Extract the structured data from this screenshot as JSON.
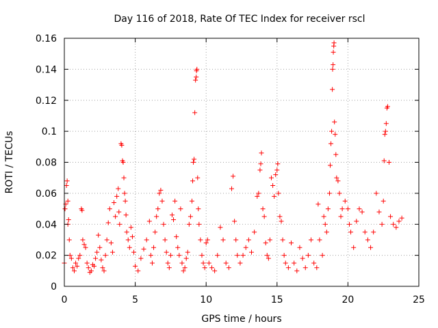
{
  "chart_data": {
    "type": "scatter",
    "title": "Day 116 of 2018, Rate Of TEC Index for receiver rscl",
    "xlabel": "GPS time / hours",
    "ylabel": "ROTI / TECUs",
    "xlim": [
      0,
      25
    ],
    "ylim": [
      0,
      0.16
    ],
    "xticks": [
      0,
      5,
      10,
      15,
      20,
      25
    ],
    "xtick_labels": [
      "0",
      "5",
      "10",
      "15",
      "20",
      "25"
    ],
    "yticks": [
      0,
      0.02,
      0.04,
      0.06,
      0.08,
      0.1,
      0.12,
      0.14,
      0.16
    ],
    "ytick_labels": [
      "0",
      "0.02",
      "0.04",
      "0.06",
      "0.08",
      "0.1",
      "0.12",
      "0.14",
      "0.16"
    ],
    "grid": true,
    "marker": "+",
    "color": "#ff0000",
    "series": [
      {
        "name": "ROTI",
        "points": [
          [
            0.0,
            0.015
          ],
          [
            0.05,
            0.05
          ],
          [
            0.1,
            0.053
          ],
          [
            0.15,
            0.065
          ],
          [
            0.2,
            0.068
          ],
          [
            0.25,
            0.055
          ],
          [
            0.25,
            0.04
          ],
          [
            0.3,
            0.043
          ],
          [
            0.35,
            0.03
          ],
          [
            0.4,
            0.02
          ],
          [
            0.5,
            0.018
          ],
          [
            0.6,
            0.012
          ],
          [
            0.7,
            0.01
          ],
          [
            0.8,
            0.015
          ],
          [
            0.9,
            0.013
          ],
          [
            1.0,
            0.018
          ],
          [
            1.1,
            0.02
          ],
          [
            1.2,
            0.05
          ],
          [
            1.25,
            0.049
          ],
          [
            1.3,
            0.03
          ],
          [
            1.4,
            0.027
          ],
          [
            1.5,
            0.025
          ],
          [
            1.6,
            0.015
          ],
          [
            1.7,
            0.012
          ],
          [
            1.8,
            0.009
          ],
          [
            1.9,
            0.01
          ],
          [
            2.0,
            0.014
          ],
          [
            2.1,
            0.013
          ],
          [
            2.2,
            0.018
          ],
          [
            2.3,
            0.022
          ],
          [
            2.4,
            0.033
          ],
          [
            2.5,
            0.025
          ],
          [
            2.6,
            0.017
          ],
          [
            2.7,
            0.012
          ],
          [
            2.8,
            0.01
          ],
          [
            2.9,
            0.02
          ],
          [
            3.0,
            0.03
          ],
          [
            3.1,
            0.041
          ],
          [
            3.2,
            0.05
          ],
          [
            3.3,
            0.028
          ],
          [
            3.4,
            0.022
          ],
          [
            3.5,
            0.054
          ],
          [
            3.6,
            0.045
          ],
          [
            3.7,
            0.058
          ],
          [
            3.8,
            0.063
          ],
          [
            3.85,
            0.048
          ],
          [
            3.9,
            0.04
          ],
          [
            4.0,
            0.092
          ],
          [
            4.05,
            0.091
          ],
          [
            4.1,
            0.081
          ],
          [
            4.15,
            0.08
          ],
          [
            4.2,
            0.07
          ],
          [
            4.25,
            0.06
          ],
          [
            4.3,
            0.055
          ],
          [
            4.35,
            0.046
          ],
          [
            4.4,
            0.035
          ],
          [
            4.5,
            0.03
          ],
          [
            4.6,
            0.025
          ],
          [
            4.7,
            0.038
          ],
          [
            4.8,
            0.032
          ],
          [
            4.9,
            0.022
          ],
          [
            5.0,
            0.013
          ],
          [
            5.2,
            0.01
          ],
          [
            5.4,
            0.018
          ],
          [
            5.6,
            0.024
          ],
          [
            5.8,
            0.03
          ],
          [
            6.0,
            0.042
          ],
          [
            6.1,
            0.02
          ],
          [
            6.2,
            0.015
          ],
          [
            6.3,
            0.025
          ],
          [
            6.4,
            0.035
          ],
          [
            6.5,
            0.045
          ],
          [
            6.6,
            0.05
          ],
          [
            6.7,
            0.06
          ],
          [
            6.8,
            0.062
          ],
          [
            6.9,
            0.055
          ],
          [
            7.0,
            0.04
          ],
          [
            7.1,
            0.03
          ],
          [
            7.2,
            0.022
          ],
          [
            7.3,
            0.015
          ],
          [
            7.4,
            0.012
          ],
          [
            7.5,
            0.02
          ],
          [
            7.6,
            0.046
          ],
          [
            7.7,
            0.043
          ],
          [
            7.8,
            0.055
          ],
          [
            7.9,
            0.032
          ],
          [
            8.0,
            0.025
          ],
          [
            8.1,
            0.02
          ],
          [
            8.2,
            0.05
          ],
          [
            8.3,
            0.015
          ],
          [
            8.4,
            0.01
          ],
          [
            8.5,
            0.012
          ],
          [
            8.6,
            0.018
          ],
          [
            8.7,
            0.022
          ],
          [
            8.8,
            0.04
          ],
          [
            8.9,
            0.045
          ],
          [
            9.0,
            0.055
          ],
          [
            9.05,
            0.068
          ],
          [
            9.1,
            0.08
          ],
          [
            9.15,
            0.082
          ],
          [
            9.2,
            0.112
          ],
          [
            9.25,
            0.133
          ],
          [
            9.3,
            0.135
          ],
          [
            9.32,
            0.139
          ],
          [
            9.35,
            0.14
          ],
          [
            9.4,
            0.07
          ],
          [
            9.45,
            0.05
          ],
          [
            9.5,
            0.04
          ],
          [
            9.6,
            0.03
          ],
          [
            9.7,
            0.02
          ],
          [
            9.8,
            0.015
          ],
          [
            9.9,
            0.012
          ],
          [
            10.0,
            0.028
          ],
          [
            10.1,
            0.03
          ],
          [
            10.2,
            0.015
          ],
          [
            10.4,
            0.012
          ],
          [
            10.6,
            0.01
          ],
          [
            10.8,
            0.02
          ],
          [
            11.0,
            0.038
          ],
          [
            11.2,
            0.03
          ],
          [
            11.4,
            0.015
          ],
          [
            11.6,
            0.012
          ],
          [
            11.8,
            0.063
          ],
          [
            11.9,
            0.071
          ],
          [
            12.0,
            0.042
          ],
          [
            12.1,
            0.03
          ],
          [
            12.2,
            0.02
          ],
          [
            12.4,
            0.015
          ],
          [
            12.6,
            0.02
          ],
          [
            12.8,
            0.025
          ],
          [
            13.0,
            0.03
          ],
          [
            13.2,
            0.022
          ],
          [
            13.4,
            0.035
          ],
          [
            13.6,
            0.058
          ],
          [
            13.7,
            0.06
          ],
          [
            13.8,
            0.075
          ],
          [
            13.85,
            0.079
          ],
          [
            13.9,
            0.086
          ],
          [
            14.0,
            0.05
          ],
          [
            14.1,
            0.045
          ],
          [
            14.2,
            0.028
          ],
          [
            14.3,
            0.02
          ],
          [
            14.4,
            0.018
          ],
          [
            14.5,
            0.03
          ],
          [
            14.6,
            0.07
          ],
          [
            14.7,
            0.065
          ],
          [
            14.8,
            0.058
          ],
          [
            14.9,
            0.072
          ],
          [
            15.0,
            0.075
          ],
          [
            15.05,
            0.079
          ],
          [
            15.1,
            0.06
          ],
          [
            15.2,
            0.045
          ],
          [
            15.3,
            0.042
          ],
          [
            15.4,
            0.03
          ],
          [
            15.5,
            0.02
          ],
          [
            15.6,
            0.015
          ],
          [
            15.8,
            0.012
          ],
          [
            16.0,
            0.028
          ],
          [
            16.2,
            0.015
          ],
          [
            16.4,
            0.01
          ],
          [
            16.6,
            0.025
          ],
          [
            16.8,
            0.018
          ],
          [
            17.0,
            0.012
          ],
          [
            17.2,
            0.02
          ],
          [
            17.4,
            0.03
          ],
          [
            17.6,
            0.015
          ],
          [
            17.8,
            0.012
          ],
          [
            17.9,
            0.053
          ],
          [
            18.0,
            0.03
          ],
          [
            18.2,
            0.02
          ],
          [
            18.3,
            0.045
          ],
          [
            18.4,
            0.04
          ],
          [
            18.5,
            0.035
          ],
          [
            18.6,
            0.05
          ],
          [
            18.7,
            0.06
          ],
          [
            18.75,
            0.078
          ],
          [
            18.8,
            0.092
          ],
          [
            18.85,
            0.1
          ],
          [
            18.9,
            0.127
          ],
          [
            18.92,
            0.14
          ],
          [
            18.95,
            0.143
          ],
          [
            18.97,
            0.151
          ],
          [
            19.0,
            0.155
          ],
          [
            19.02,
            0.157
          ],
          [
            19.05,
            0.106
          ],
          [
            19.1,
            0.098
          ],
          [
            19.15,
            0.085
          ],
          [
            19.2,
            0.07
          ],
          [
            19.3,
            0.068
          ],
          [
            19.4,
            0.06
          ],
          [
            19.5,
            0.045
          ],
          [
            19.6,
            0.05
          ],
          [
            19.8,
            0.055
          ],
          [
            20.0,
            0.05
          ],
          [
            20.1,
            0.04
          ],
          [
            20.2,
            0.035
          ],
          [
            20.4,
            0.025
          ],
          [
            20.6,
            0.042
          ],
          [
            20.8,
            0.05
          ],
          [
            21.0,
            0.048
          ],
          [
            21.2,
            0.035
          ],
          [
            21.4,
            0.03
          ],
          [
            21.6,
            0.025
          ],
          [
            21.8,
            0.035
          ],
          [
            22.0,
            0.06
          ],
          [
            22.2,
            0.048
          ],
          [
            22.4,
            0.04
          ],
          [
            22.5,
            0.055
          ],
          [
            22.55,
            0.081
          ],
          [
            22.6,
            0.098
          ],
          [
            22.65,
            0.1
          ],
          [
            22.7,
            0.105
          ],
          [
            22.75,
            0.115
          ],
          [
            22.8,
            0.116
          ],
          [
            22.9,
            0.08
          ],
          [
            23.0,
            0.045
          ],
          [
            23.2,
            0.04
          ],
          [
            23.4,
            0.038
          ],
          [
            23.6,
            0.042
          ],
          [
            23.8,
            0.044
          ]
        ]
      }
    ]
  }
}
